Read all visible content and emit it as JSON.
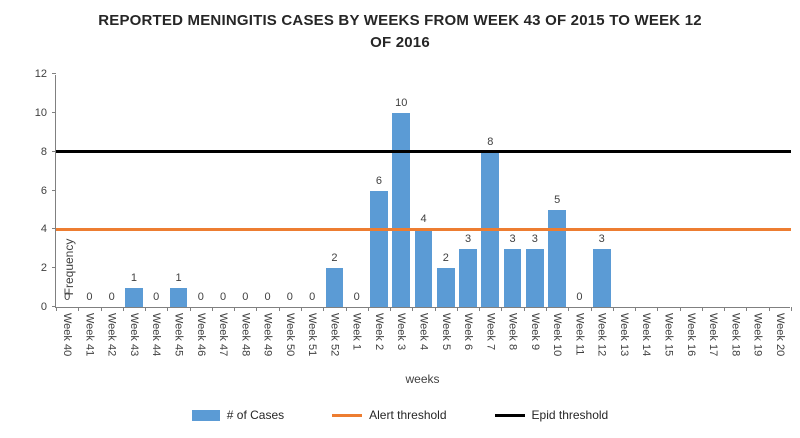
{
  "chart_data": {
    "type": "bar",
    "title": "REPORTED MENINGITIS CASES BY WEEKS FROM WEEK 43 OF 2015 TO WEEK 12 OF 2016",
    "xlabel": "weeks",
    "ylabel": "Frequency",
    "ylim": [
      0,
      12
    ],
    "y_ticks": [
      0,
      2,
      4,
      6,
      8,
      10,
      12
    ],
    "grid": false,
    "legend_position": "bottom",
    "categories": [
      "Week 40",
      "Week 41",
      "Week 42",
      "Week 43",
      "Week 44",
      "Week 45",
      "Week 46",
      "Week 47",
      "Week 48",
      "Week 49",
      "Week 50",
      "Week 51",
      "Week 52",
      "Week 1",
      "Week 2",
      "Week 3",
      "Week 4",
      "Week 5",
      "Week 6",
      "Week 7",
      "Week 8",
      "Week 9",
      "Week 10",
      "Week 11",
      "Week 12",
      "Week 13",
      "Week 14",
      "Week 15",
      "Week 16",
      "Week 17",
      "Week 18",
      "Week 19",
      "Week 20"
    ],
    "series": [
      {
        "name": "# of Cases",
        "type": "bar",
        "color": "#5B9BD5",
        "values": [
          0,
          0,
          0,
          1,
          0,
          1,
          0,
          0,
          0,
          0,
          0,
          0,
          2,
          0,
          6,
          10,
          4,
          2,
          3,
          8,
          3,
          3,
          5,
          0,
          3,
          null,
          null,
          null,
          null,
          null,
          null,
          null,
          null
        ]
      },
      {
        "name": "Alert threshold",
        "type": "horizontal-line",
        "color": "#ED7D31",
        "value": 4
      },
      {
        "name": "Epid threshold",
        "type": "horizontal-line",
        "color": "#000000",
        "value": 8
      }
    ],
    "legend": [
      {
        "label": "# of Cases",
        "swatch": "bar",
        "color": "#5B9BD5"
      },
      {
        "label": "Alert threshold",
        "swatch": "line",
        "color": "#ED7D31"
      },
      {
        "label": "Epid threshold",
        "swatch": "line",
        "color": "#000000"
      }
    ]
  }
}
